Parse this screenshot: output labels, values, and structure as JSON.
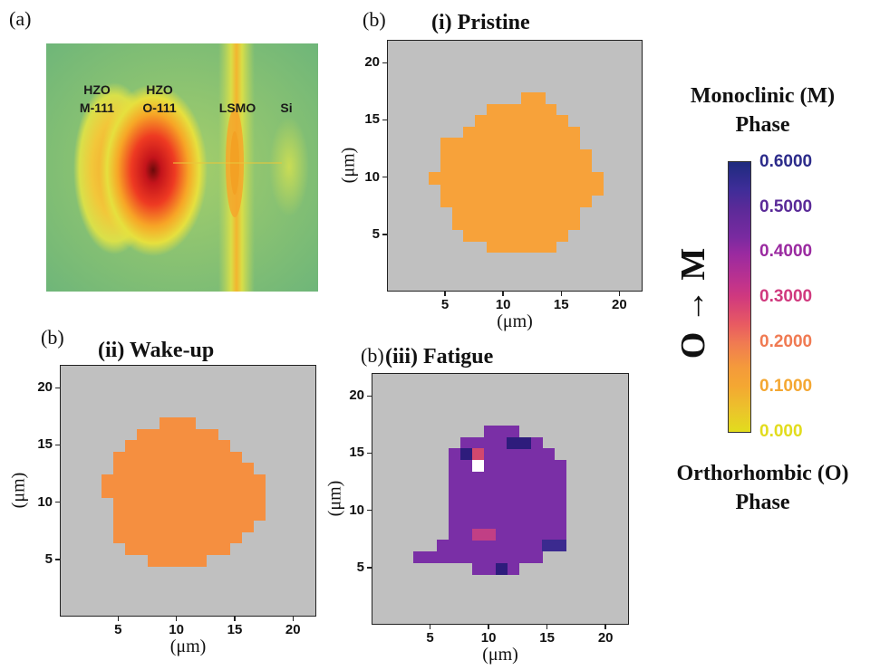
{
  "chart_data": [
    {
      "type": "image",
      "panel_letter": "(a)",
      "peak_labels": [
        "HZO\nM-111",
        "HZO\nO-111",
        "LSMO",
        "Si"
      ]
    },
    {
      "type": "heatmap",
      "panel_letter": "(b)",
      "title": "(i) Pristine",
      "xlabel": "(μm)",
      "ylabel": "(μm)",
      "xticks": [
        "5",
        "10",
        "15",
        "20"
      ],
      "yticks": [
        "5",
        "10",
        "15",
        "20"
      ],
      "xlim": [
        0,
        22
      ],
      "ylim": [
        0,
        22
      ],
      "background": "#c0c0c0",
      "fill_color": "#f7a23a",
      "approx_value": 0.15,
      "rows": [
        {
          "y": 17,
          "x_from": 12,
          "x_to": 13
        },
        {
          "y": 16,
          "x_from": 9,
          "x_to": 14
        },
        {
          "y": 15,
          "x_from": 8,
          "x_to": 15
        },
        {
          "y": 14,
          "x_from": 7,
          "x_to": 16
        },
        {
          "y": 13,
          "x_from": 5,
          "x_to": 16
        },
        {
          "y": 12,
          "x_from": 5,
          "x_to": 17
        },
        {
          "y": 11,
          "x_from": 5,
          "x_to": 17
        },
        {
          "y": 10,
          "x_from": 4,
          "x_to": 18
        },
        {
          "y": 9,
          "x_from": 5,
          "x_to": 18
        },
        {
          "y": 8,
          "x_from": 5,
          "x_to": 17
        },
        {
          "y": 7,
          "x_from": 6,
          "x_to": 16
        },
        {
          "y": 6,
          "x_from": 6,
          "x_to": 16
        },
        {
          "y": 5,
          "x_from": 7,
          "x_to": 15
        },
        {
          "y": 4,
          "x_from": 9,
          "x_to": 14
        }
      ]
    },
    {
      "type": "heatmap",
      "panel_letter": "(b)",
      "title": "(ii) Wake-up",
      "xlabel": "(μm)",
      "ylabel": "(μm)",
      "xticks": [
        "5",
        "10",
        "15",
        "20"
      ],
      "yticks": [
        "5",
        "10",
        "15",
        "20"
      ],
      "xlim": [
        0,
        22
      ],
      "ylim": [
        0,
        22
      ],
      "background": "#c0c0c0",
      "fill_color": "#f58f40",
      "approx_value": 0.2,
      "rows": [
        {
          "y": 17,
          "x_from": 9,
          "x_to": 11
        },
        {
          "y": 16,
          "x_from": 7,
          "x_to": 13
        },
        {
          "y": 15,
          "x_from": 6,
          "x_to": 14
        },
        {
          "y": 14,
          "x_from": 5,
          "x_to": 15
        },
        {
          "y": 13,
          "x_from": 5,
          "x_to": 16
        },
        {
          "y": 12,
          "x_from": 4,
          "x_to": 17
        },
        {
          "y": 11,
          "x_from": 4,
          "x_to": 17
        },
        {
          "y": 10,
          "x_from": 5,
          "x_to": 17
        },
        {
          "y": 9,
          "x_from": 5,
          "x_to": 17
        },
        {
          "y": 8,
          "x_from": 5,
          "x_to": 16
        },
        {
          "y": 7,
          "x_from": 5,
          "x_to": 15
        },
        {
          "y": 6,
          "x_from": 6,
          "x_to": 14
        },
        {
          "y": 5,
          "x_from": 8,
          "x_to": 12
        }
      ]
    },
    {
      "type": "heatmap",
      "panel_letter": "(b)",
      "title": "(iii) Fatigue",
      "xlabel": "(μm)",
      "ylabel": "(μm)",
      "xticks": [
        "5",
        "10",
        "15",
        "20"
      ],
      "yticks": [
        "5",
        "10",
        "15",
        "20"
      ],
      "xlim": [
        0,
        22
      ],
      "ylim": [
        0,
        22
      ],
      "background": "#c0c0c0",
      "fill_color": "#7a2fa6",
      "approx_value": 0.45,
      "rows": [
        {
          "y": 17,
          "x_from": 10,
          "x_to": 12
        },
        {
          "y": 16,
          "x_from": 8,
          "x_to": 14
        },
        {
          "y": 15,
          "x_from": 7,
          "x_to": 15
        },
        {
          "y": 14,
          "x_from": 7,
          "x_to": 16
        },
        {
          "y": 13,
          "x_from": 7,
          "x_to": 16
        },
        {
          "y": 12,
          "x_from": 7,
          "x_to": 16
        },
        {
          "y": 11,
          "x_from": 7,
          "x_to": 16
        },
        {
          "y": 10,
          "x_from": 7,
          "x_to": 16
        },
        {
          "y": 9,
          "x_from": 7,
          "x_to": 16
        },
        {
          "y": 8,
          "x_from": 7,
          "x_to": 16
        },
        {
          "y": 7,
          "x_from": 6,
          "x_to": 16
        },
        {
          "y": 6,
          "x_from": 4,
          "x_to": 14
        },
        {
          "y": 5,
          "x_from": 9,
          "x_to": 12
        }
      ],
      "accents": [
        {
          "x": 9,
          "y": 15,
          "color": "#d2486e"
        },
        {
          "x": 9,
          "y": 14,
          "color": "#ffffff"
        },
        {
          "x": 8,
          "y": 15,
          "color": "#2e1c7c"
        },
        {
          "x": 12,
          "y": 16,
          "color": "#2e1c7c"
        },
        {
          "x": 13,
          "y": 16,
          "color": "#2e1c7c"
        },
        {
          "x": 11,
          "y": 5,
          "color": "#2e1c7c"
        },
        {
          "x": 9,
          "y": 8,
          "color": "#c13f85"
        },
        {
          "x": 10,
          "y": 8,
          "color": "#c13f85"
        },
        {
          "x": 15,
          "y": 7,
          "color": "#3b2a8f"
        },
        {
          "x": 16,
          "y": 7,
          "color": "#3b2a8f"
        }
      ]
    },
    {
      "type": "colorbar",
      "top_label": "Monoclinic (M)\nPhase",
      "bottom_label": "Orthorhombic (O)\nPhase",
      "side_label": "O → M",
      "ticks": [
        {
          "value": 0.6,
          "label": "0.6000",
          "color": "#2c2b8a"
        },
        {
          "value": 0.5,
          "label": "0.5000",
          "color": "#5a2a98"
        },
        {
          "value": 0.4,
          "label": "0.4000",
          "color": "#9a2aa0"
        },
        {
          "value": 0.3,
          "label": "0.3000",
          "color": "#d0397e"
        },
        {
          "value": 0.2,
          "label": "0.2000",
          "color": "#f07a52"
        },
        {
          "value": 0.1,
          "label": "0.1000",
          "color": "#f4a732"
        },
        {
          "value": 0.0,
          "label": "0.000",
          "color": "#e2dc1d"
        }
      ]
    }
  ]
}
